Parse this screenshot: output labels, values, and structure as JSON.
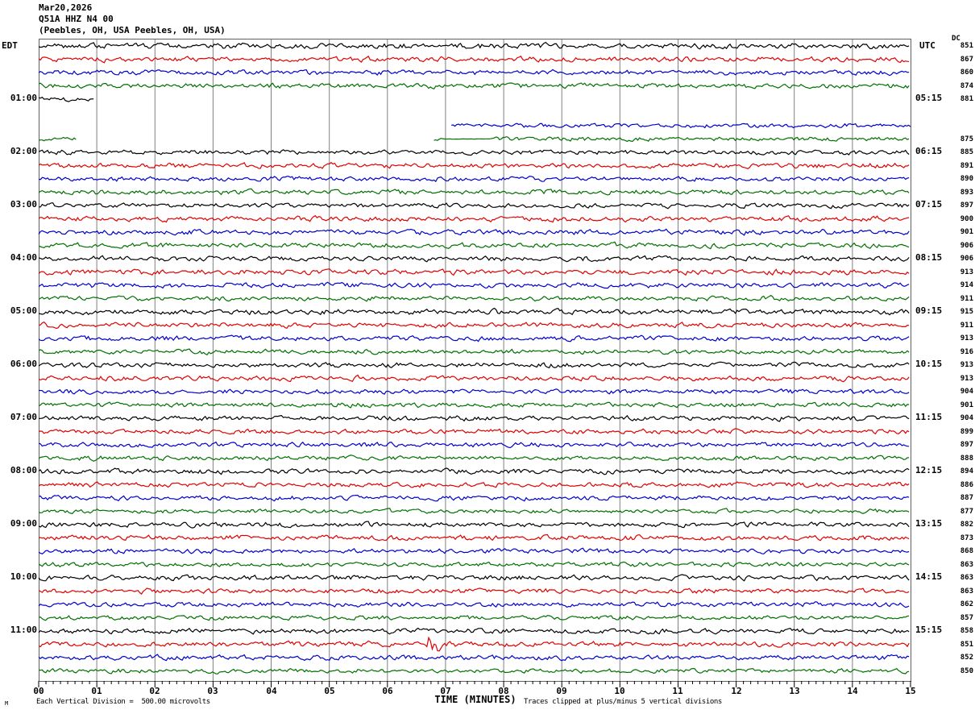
{
  "header": {
    "date": "Mar20,2026",
    "station": "Q51A HHZ N4 00",
    "location": "(Peebles, OH, USA Peebles, OH, USA)"
  },
  "axis": {
    "left_tz": "EDT",
    "right_tz": "UTC",
    "dc_header": "DC",
    "x_title": "TIME (MINUTES)",
    "footer_scale": "Each Vertical Division =  500.00 microvolts",
    "footer_clip": "Traces clipped at plus/minus 5 vertical divisions",
    "corner_mark": "M"
  },
  "colors": {
    "black": "#000000",
    "red": "#e00000",
    "blue": "#0000cc",
    "green": "#007000",
    "grid": "#808080",
    "border": "#606060"
  },
  "chart_data": {
    "type": "line",
    "title": "Q51A HHZ N4 00 (Peebles, OH, USA) helicorder, Mar20,2026",
    "xlabel": "TIME (MINUTES)",
    "x_range": [
      0,
      15
    ],
    "x_tick_labels": [
      "00",
      "01",
      "02",
      "03",
      "04",
      "05",
      "06",
      "07",
      "08",
      "09",
      "10",
      "11",
      "12",
      "13",
      "14",
      "15"
    ],
    "minutes_per_line": 15,
    "vertical_division_microvolts": 500.0,
    "clip_divisions": 5,
    "notes": "48 trace lines, 15 minutes each; colors cycle black/red/blue/green; left labels EDT start-of-line hours, right labels UTC end-of-line; dc = DC offset counts; data gap ~01:01-01:36 EDT; red burst event ~11:21 EDT at minute 6.8",
    "rows": [
      {
        "c": "black",
        "dc": 851,
        "amp": 2.6
      },
      {
        "c": "red",
        "dc": 867,
        "amp": 2.4
      },
      {
        "c": "blue",
        "dc": 860,
        "amp": 2.4
      },
      {
        "c": "green",
        "dc": 874,
        "amp": 2.3
      },
      {
        "c": "black",
        "edt": "01:00",
        "utc": "05:15",
        "dc": 881,
        "amp": 2.0,
        "seg": [
          [
            0,
            0.95
          ]
        ]
      },
      {
        "c": "red",
        "seg": []
      },
      {
        "c": "blue",
        "seg": [
          [
            7.1,
            15
          ]
        ],
        "amp": 2.0
      },
      {
        "c": "green",
        "dc": 875,
        "seg": [
          [
            0,
            0.65
          ],
          [
            6.8,
            15
          ]
        ],
        "amp": 2.0,
        "ov": [
          {
            "f": 6.95,
            "t": 7.78,
            "a": 0.25
          }
        ]
      },
      {
        "c": "black",
        "edt": "02:00",
        "utc": "06:15",
        "dc": 885,
        "amp": 2.2
      },
      {
        "c": "red",
        "dc": 891,
        "amp": 2.4
      },
      {
        "c": "blue",
        "dc": 890,
        "amp": 2.2
      },
      {
        "c": "green",
        "dc": 893,
        "amp": 2.3
      },
      {
        "c": "black",
        "edt": "03:00",
        "utc": "07:15",
        "dc": 897,
        "amp": 2.2
      },
      {
        "c": "red",
        "dc": 900,
        "amp": 2.4
      },
      {
        "c": "blue",
        "dc": 901,
        "amp": 2.4
      },
      {
        "c": "green",
        "dc": 906,
        "amp": 2.3
      },
      {
        "c": "black",
        "edt": "04:00",
        "utc": "08:15",
        "dc": 906,
        "amp": 2.3
      },
      {
        "c": "red",
        "dc": 913,
        "amp": 2.5
      },
      {
        "c": "blue",
        "dc": 914,
        "amp": 2.4
      },
      {
        "c": "green",
        "dc": 911,
        "amp": 2.2
      },
      {
        "c": "black",
        "edt": "05:00",
        "utc": "09:15",
        "dc": 915,
        "amp": 2.5
      },
      {
        "c": "red",
        "dc": 911,
        "amp": 2.3
      },
      {
        "c": "blue",
        "dc": 913,
        "amp": 2.3
      },
      {
        "c": "green",
        "dc": 916,
        "amp": 2.2
      },
      {
        "c": "black",
        "edt": "06:00",
        "utc": "10:15",
        "dc": 913,
        "amp": 2.3
      },
      {
        "c": "red",
        "dc": 913,
        "amp": 2.4
      },
      {
        "c": "blue",
        "dc": 904,
        "amp": 2.2
      },
      {
        "c": "green",
        "dc": 901,
        "amp": 2.2
      },
      {
        "c": "black",
        "edt": "07:00",
        "utc": "11:15",
        "dc": 904,
        "amp": 2.3
      },
      {
        "c": "red",
        "dc": 899,
        "amp": 2.3
      },
      {
        "c": "blue",
        "dc": 897,
        "amp": 2.2
      },
      {
        "c": "green",
        "dc": 888,
        "amp": 2.1
      },
      {
        "c": "black",
        "edt": "08:00",
        "utc": "12:15",
        "dc": 894,
        "amp": 2.4
      },
      {
        "c": "red",
        "dc": 886,
        "amp": 2.3
      },
      {
        "c": "blue",
        "dc": 887,
        "amp": 2.2
      },
      {
        "c": "green",
        "dc": 877,
        "amp": 2.1
      },
      {
        "c": "black",
        "edt": "09:00",
        "utc": "13:15",
        "dc": 882,
        "amp": 2.3
      },
      {
        "c": "red",
        "dc": 873,
        "amp": 2.4
      },
      {
        "c": "blue",
        "dc": 868,
        "amp": 2.2
      },
      {
        "c": "green",
        "dc": 863,
        "amp": 2.1
      },
      {
        "c": "black",
        "edt": "10:00",
        "utc": "14:15",
        "dc": 863,
        "amp": 2.3
      },
      {
        "c": "red",
        "dc": 863,
        "amp": 2.3
      },
      {
        "c": "blue",
        "dc": 862,
        "amp": 2.2
      },
      {
        "c": "green",
        "dc": 857,
        "amp": 2.1
      },
      {
        "c": "black",
        "edt": "11:00",
        "utc": "15:15",
        "dc": 858,
        "amp": 2.4
      },
      {
        "c": "red",
        "dc": 851,
        "amp": 2.4,
        "ov": [
          {
            "f": 6.66,
            "t": 6.94,
            "a": 12
          }
        ]
      },
      {
        "c": "blue",
        "dc": 852,
        "amp": 2.3
      },
      {
        "c": "green",
        "dc": 850,
        "amp": 2.1
      }
    ]
  }
}
